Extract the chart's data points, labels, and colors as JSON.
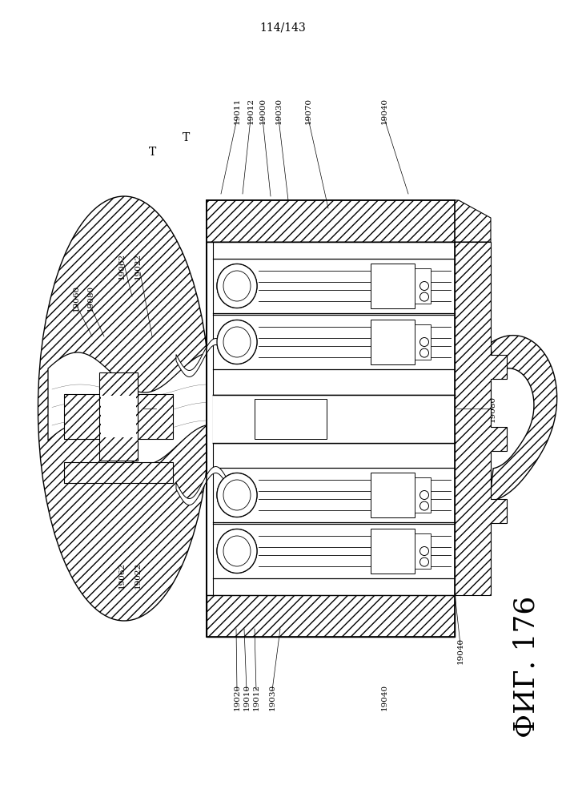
{
  "page_label": "114/143",
  "fig_label": "ФИГ. 176",
  "bg_color": "#ffffff",
  "line_color": "#000000",
  "page_label_fontsize": 10,
  "fig_label_fontsize": 26,
  "ann_fontsize": 7.5
}
